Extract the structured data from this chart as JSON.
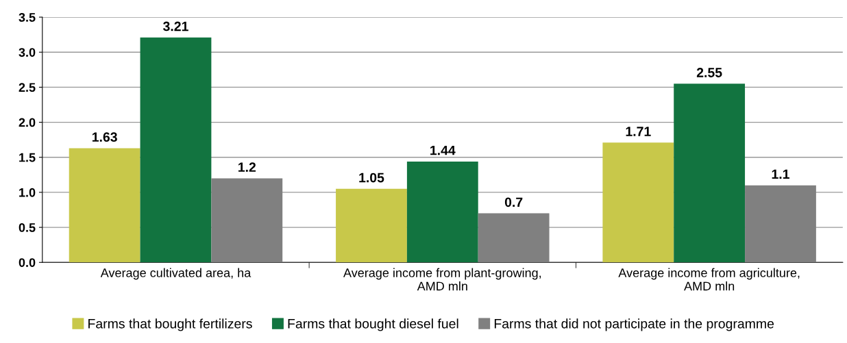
{
  "chart_data": {
    "type": "bar",
    "categories": [
      "Average cultivated area, ha",
      "Average income from plant-growing,\nAMD mln",
      "Average income from agriculture,\nAMD mln"
    ],
    "series": [
      {
        "name": "Farms that bought fertilizers",
        "color": "#c8c84a",
        "values": [
          1.63,
          1.05,
          1.71
        ]
      },
      {
        "name": "Farms that bought diesel fuel",
        "color": "#127440",
        "values": [
          3.21,
          1.44,
          2.55
        ]
      },
      {
        "name": "Farms that did not participate in the programme",
        "color": "#808080",
        "values": [
          1.2,
          0.7,
          1.1
        ]
      }
    ],
    "ylim": [
      0,
      3.5
    ],
    "yticks": [
      {
        "value": 0,
        "label": "0.0"
      },
      {
        "value": 0.5,
        "label": "0.5"
      },
      {
        "value": 1,
        "label": "1.0"
      },
      {
        "value": 1.5,
        "label": "1.5"
      },
      {
        "value": 2,
        "label": "2.0"
      },
      {
        "value": 2.5,
        "label": "2.5"
      },
      {
        "value": 3,
        "label": "3.0"
      },
      {
        "value": 3.5,
        "label": "3.5"
      }
    ],
    "grid": "y",
    "legend": "bottom",
    "data_labels": true
  }
}
